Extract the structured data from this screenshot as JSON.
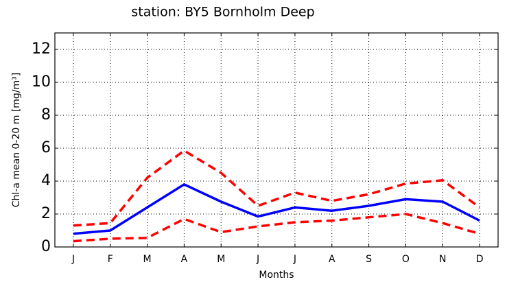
{
  "chart_data": {
    "type": "line",
    "title": "station: BY5 Bornholm Deep",
    "x_label": "Months",
    "y_label": "Chl-a mean 0-20 m [mg/m³]",
    "categories": [
      "J",
      "F",
      "M",
      "A",
      "M",
      "J",
      "J",
      "A",
      "S",
      "O",
      "N",
      "D"
    ],
    "series": [
      {
        "color": "#0000ff",
        "style": "solid",
        "values": [
          0.8,
          1.0,
          2.4,
          3.8,
          2.75,
          1.85,
          2.4,
          2.2,
          2.5,
          2.9,
          2.75,
          1.6
        ]
      },
      {
        "color": "#ff0000",
        "style": "dashed",
        "values": [
          1.3,
          1.45,
          4.2,
          5.85,
          4.5,
          2.5,
          3.3,
          2.8,
          3.2,
          3.85,
          4.05,
          2.4
        ]
      },
      {
        "color": "#ff0000",
        "style": "dashed",
        "values": [
          0.35,
          0.5,
          0.55,
          1.7,
          0.9,
          1.25,
          1.5,
          1.6,
          1.8,
          2.0,
          1.45,
          0.8
        ]
      }
    ],
    "ylim": [
      0,
      13
    ],
    "yticks": [
      0,
      2,
      4,
      6,
      8,
      10,
      12
    ],
    "grid": true
  }
}
